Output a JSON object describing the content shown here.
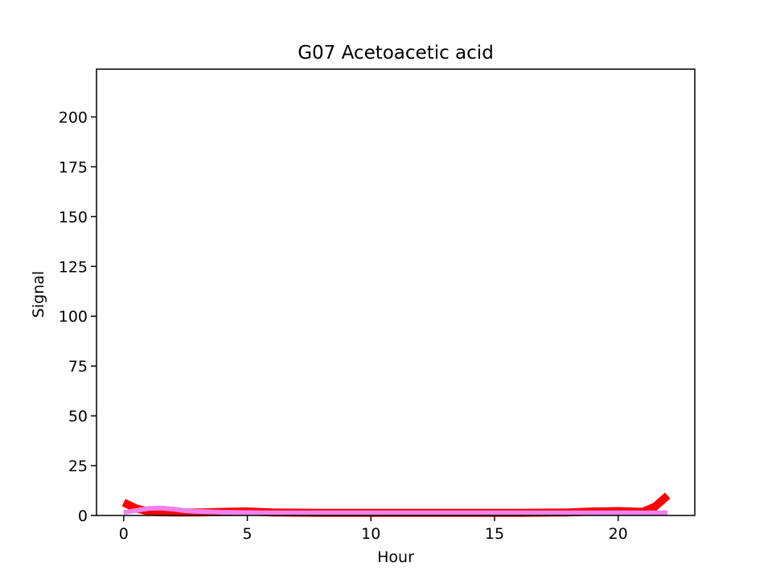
{
  "chart_data": {
    "type": "line",
    "title": "G07 Acetoacetic acid",
    "xlabel": "Hour",
    "ylabel": "Signal",
    "xlim": [
      -1.1,
      23.1
    ],
    "ylim": [
      0,
      224
    ],
    "xticks": [
      0,
      5,
      10,
      15,
      20
    ],
    "yticks": [
      0,
      25,
      50,
      75,
      100,
      125,
      150,
      175,
      200
    ],
    "grid": false,
    "series": [
      {
        "color": "#ff0000",
        "width": 10,
        "x": [
          0,
          0.5,
          1,
          1.5,
          2,
          3,
          4,
          5,
          6,
          8,
          10,
          12,
          14,
          16,
          18,
          19,
          20,
          21,
          21.5,
          22
        ],
        "y": [
          6.5,
          3.5,
          2.0,
          1.6,
          1.5,
          1.5,
          1.8,
          2.0,
          1.5,
          1.3,
          1.3,
          1.3,
          1.3,
          1.3,
          1.5,
          2.0,
          2.2,
          1.8,
          4.5,
          10.0
        ]
      },
      {
        "color": "#ee82ee",
        "width": 6,
        "x": [
          0,
          0.5,
          1,
          1.5,
          2,
          2.5,
          3,
          4,
          5,
          6,
          8,
          10,
          12,
          14,
          16,
          18,
          20,
          21,
          22
        ],
        "y": [
          1.5,
          2.5,
          3.5,
          3.7,
          3.2,
          2.4,
          2.0,
          1.6,
          1.4,
          1.3,
          1.3,
          1.3,
          1.3,
          1.3,
          1.3,
          1.3,
          1.3,
          1.3,
          1.3
        ]
      }
    ]
  }
}
